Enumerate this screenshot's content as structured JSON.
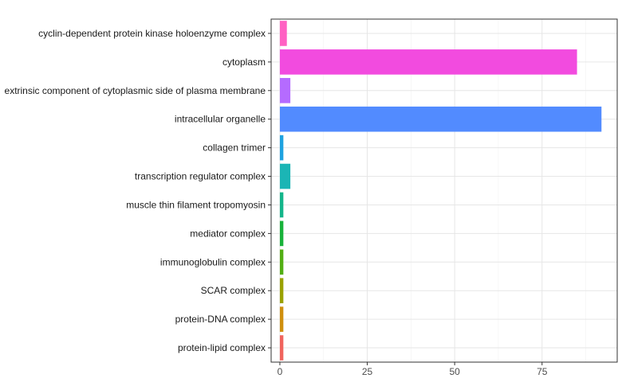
{
  "chart_data": {
    "type": "bar",
    "orientation": "horizontal",
    "title": "",
    "xlabel": "",
    "ylabel": "",
    "categories": [
      "cyclin-dependent protein kinase holoenzyme complex",
      "cytoplasm",
      "extrinsic component of cytoplasmic side of plasma membrane",
      "intracellular organelle",
      "collagen trimer",
      "transcription regulator complex",
      "muscle thin filament tropomyosin",
      "mediator complex",
      "immunoglobulin complex",
      "SCAR complex",
      "protein-DNA complex",
      "protein-lipid complex"
    ],
    "values": [
      2,
      85,
      3,
      92,
      1,
      3,
      1,
      1,
      1,
      1,
      1,
      1
    ],
    "colors": [
      "#FF61C3",
      "#F24BDF",
      "#B56BFF",
      "#528BFF",
      "#1EA2E0",
      "#1BB5B5",
      "#14B58A",
      "#18B23A",
      "#52AE14",
      "#9AA100",
      "#CF8F0E",
      "#F0645D"
    ],
    "xlim": [
      -2.5,
      96.5
    ],
    "xticks": [
      0,
      25,
      50,
      75
    ],
    "xtick_labels": [
      "0",
      "25",
      "50",
      "75"
    ],
    "grid": true,
    "legend": "none"
  }
}
